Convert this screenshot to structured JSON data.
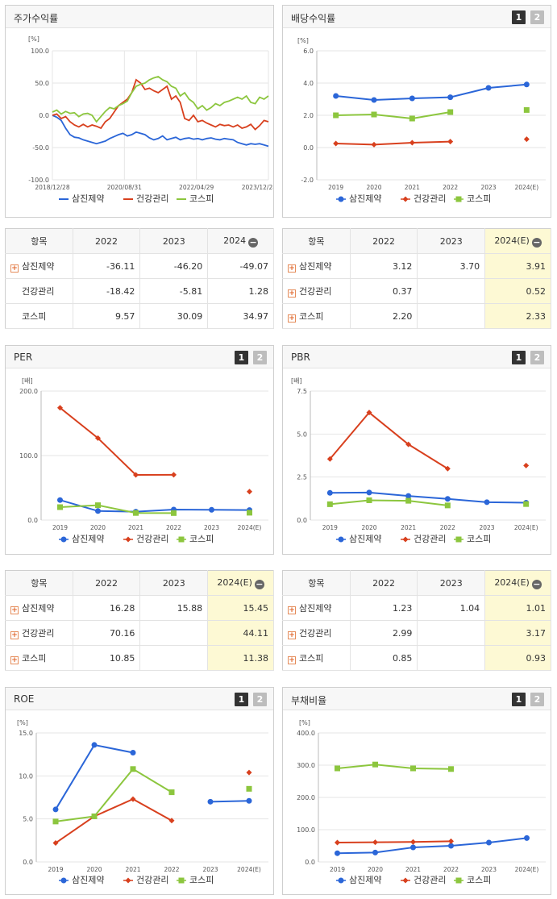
{
  "colors": {
    "samjin": "#2b66d8",
    "health": "#d8401e",
    "kospi": "#8cc63e",
    "grid": "#e6e6e6",
    "highlight": "#fdf9d4"
  },
  "legend": [
    "삼진제약",
    "건강관리",
    "코스피"
  ],
  "page_buttons": [
    "1",
    "2"
  ],
  "chart_data": [
    {
      "id": "stock-return",
      "type": "line",
      "title": "주가수익률",
      "unit": "[%]",
      "yticks": [
        "100.0",
        "50.0",
        "0.0",
        "-50.0",
        "-100.0"
      ],
      "ylim": [
        -100,
        100
      ],
      "xticks": [
        "2018/12/28",
        "2020/08/31",
        "2022/04/29",
        "2023/12/28"
      ],
      "series": [
        {
          "name": "삼진제약",
          "values": [
            0,
            -3,
            -8,
            -20,
            -30,
            -34,
            -35,
            -38,
            -40,
            -42,
            -44,
            -42,
            -40,
            -36,
            -33,
            -30,
            -28,
            -32,
            -30,
            -26,
            -28,
            -30,
            -35,
            -38,
            -36,
            -32,
            -38,
            -36,
            -34,
            -38,
            -36,
            -35,
            -37,
            -36,
            -38,
            -36,
            -35,
            -37,
            -38,
            -36,
            -37,
            -38,
            -42,
            -44,
            -46,
            -44,
            -45,
            -44,
            -46,
            -48
          ]
        },
        {
          "name": "건강관리",
          "values": [
            0,
            2,
            -5,
            -2,
            -10,
            -15,
            -18,
            -14,
            -18,
            -15,
            -17,
            -20,
            -10,
            -5,
            5,
            15,
            20,
            25,
            35,
            55,
            50,
            40,
            42,
            38,
            35,
            40,
            45,
            25,
            30,
            20,
            -5,
            -8,
            0,
            -10,
            -8,
            -12,
            -15,
            -18,
            -14,
            -16,
            -15,
            -18,
            -15,
            -20,
            -18,
            -14,
            -22,
            -16,
            -8,
            -10
          ]
        },
        {
          "name": "코스피",
          "values": [
            5,
            8,
            2,
            6,
            3,
            4,
            -2,
            2,
            3,
            0,
            -10,
            -2,
            6,
            12,
            10,
            15,
            18,
            22,
            35,
            45,
            48,
            50,
            55,
            58,
            60,
            55,
            52,
            45,
            42,
            30,
            35,
            25,
            20,
            10,
            15,
            8,
            12,
            18,
            15,
            20,
            22,
            25,
            28,
            25,
            30,
            20,
            18,
            28,
            25,
            30
          ]
        }
      ]
    },
    {
      "id": "dividend-yield",
      "type": "line",
      "title": "배당수익률",
      "unit": "[%]",
      "yticks": [
        "6.0",
        "4.0",
        "2.0",
        "0.0",
        "-2.0"
      ],
      "ylim": [
        -2,
        6
      ],
      "categories": [
        "2019",
        "2020",
        "2021",
        "2022",
        "2023",
        "2024(E)"
      ],
      "series": [
        {
          "name": "삼진제약",
          "values": [
            3.2,
            2.95,
            3.05,
            3.12,
            3.7,
            3.91
          ]
        },
        {
          "name": "건강관리",
          "values": [
            0.25,
            0.18,
            0.3,
            0.37,
            null,
            0.52
          ]
        },
        {
          "name": "코스피",
          "values": [
            2.0,
            2.05,
            1.8,
            2.2,
            null,
            2.33
          ]
        }
      ]
    },
    {
      "id": "per",
      "type": "line",
      "title": "PER",
      "unit": "[배]",
      "yticks": [
        "200.0",
        "100.0",
        "0.0"
      ],
      "ylim": [
        0,
        200
      ],
      "categories": [
        "2019",
        "2020",
        "2021",
        "2022",
        "2023",
        "2024(E)"
      ],
      "series": [
        {
          "name": "삼진제약",
          "values": [
            31,
            14,
            13,
            16.28,
            15.88,
            15.45
          ]
        },
        {
          "name": "건강관리",
          "values": [
            174,
            127,
            70,
            70.16,
            null,
            44.11
          ]
        },
        {
          "name": "코스피",
          "values": [
            20,
            23,
            11,
            10.85,
            null,
            11.38
          ]
        }
      ]
    },
    {
      "id": "pbr",
      "type": "line",
      "title": "PBR",
      "unit": "[배]",
      "yticks": [
        "7.5",
        "5.0",
        "2.5",
        "0.0"
      ],
      "ylim": [
        0,
        7.5
      ],
      "categories": [
        "2019",
        "2020",
        "2021",
        "2022",
        "2023",
        "2024(E)"
      ],
      "series": [
        {
          "name": "삼진제약",
          "values": [
            1.58,
            1.6,
            1.4,
            1.23,
            1.04,
            1.01
          ]
        },
        {
          "name": "건강관리",
          "values": [
            3.55,
            6.25,
            4.4,
            2.99,
            null,
            3.17
          ]
        },
        {
          "name": "코스피",
          "values": [
            0.92,
            1.15,
            1.12,
            0.85,
            null,
            0.93
          ]
        }
      ]
    },
    {
      "id": "roe",
      "type": "line",
      "title": "ROE",
      "unit": "[%]",
      "yticks": [
        "15.0",
        "10.0",
        "5.0",
        "0.0"
      ],
      "ylim": [
        0,
        15
      ],
      "categories": [
        "2019",
        "2020",
        "2021",
        "2022",
        "2023",
        "2024(E)"
      ],
      "series": [
        {
          "name": "삼진제약",
          "values": [
            6.1,
            13.6,
            12.7,
            null,
            7.0,
            7.1
          ]
        },
        {
          "name": "건강관리",
          "values": [
            2.2,
            5.3,
            7.3,
            4.8,
            null,
            10.4
          ]
        },
        {
          "name": "코스피",
          "values": [
            4.7,
            5.3,
            10.8,
            8.1,
            null,
            8.5
          ]
        }
      ]
    },
    {
      "id": "debt-ratio",
      "type": "line",
      "title": "부채비율",
      "unit": "[%]",
      "yticks": [
        "400.0",
        "300.0",
        "200.0",
        "100.0",
        "0.0"
      ],
      "ylim": [
        0,
        400
      ],
      "categories": [
        "2019",
        "2020",
        "2021",
        "2022",
        "2023",
        "2024(E)"
      ],
      "series": [
        {
          "name": "삼진제약",
          "values": [
            27,
            29,
            45,
            50,
            60,
            74
          ]
        },
        {
          "name": "건강관리",
          "values": [
            60,
            61,
            62,
            64,
            null,
            null
          ]
        },
        {
          "name": "코스피",
          "values": [
            290,
            302,
            290,
            288,
            null,
            null
          ]
        }
      ]
    }
  ],
  "tables": {
    "stock_return": {
      "headers": [
        "항목",
        "2022",
        "2023",
        "2024"
      ],
      "rows": [
        {
          "label": "삼진제약",
          "plus": true,
          "values": [
            "-36.11",
            "-46.20",
            "-49.07"
          ]
        },
        {
          "label": "건강관리",
          "plus": false,
          "values": [
            "-18.42",
            "-5.81",
            "1.28"
          ]
        },
        {
          "label": "코스피",
          "plus": false,
          "values": [
            "9.57",
            "30.09",
            "34.97"
          ]
        }
      ]
    },
    "dividend": {
      "headers": [
        "항목",
        "2022",
        "2023",
        "2024(E)"
      ],
      "rows": [
        {
          "label": "삼진제약",
          "plus": true,
          "values": [
            "3.12",
            "3.70",
            "3.91"
          ]
        },
        {
          "label": "건강관리",
          "plus": true,
          "values": [
            "0.37",
            "",
            "0.52"
          ]
        },
        {
          "label": "코스피",
          "plus": true,
          "values": [
            "2.20",
            "",
            "2.33"
          ]
        }
      ]
    },
    "per": {
      "headers": [
        "항목",
        "2022",
        "2023",
        "2024(E)"
      ],
      "rows": [
        {
          "label": "삼진제약",
          "plus": true,
          "values": [
            "16.28",
            "15.88",
            "15.45"
          ]
        },
        {
          "label": "건강관리",
          "plus": true,
          "values": [
            "70.16",
            "",
            "44.11"
          ]
        },
        {
          "label": "코스피",
          "plus": true,
          "values": [
            "10.85",
            "",
            "11.38"
          ]
        }
      ]
    },
    "pbr": {
      "headers": [
        "항목",
        "2022",
        "2023",
        "2024(E)"
      ],
      "rows": [
        {
          "label": "삼진제약",
          "plus": true,
          "values": [
            "1.23",
            "1.04",
            "1.01"
          ]
        },
        {
          "label": "건강관리",
          "plus": true,
          "values": [
            "2.99",
            "",
            "3.17"
          ]
        },
        {
          "label": "코스피",
          "plus": true,
          "values": [
            "0.85",
            "",
            "0.93"
          ]
        }
      ]
    }
  }
}
